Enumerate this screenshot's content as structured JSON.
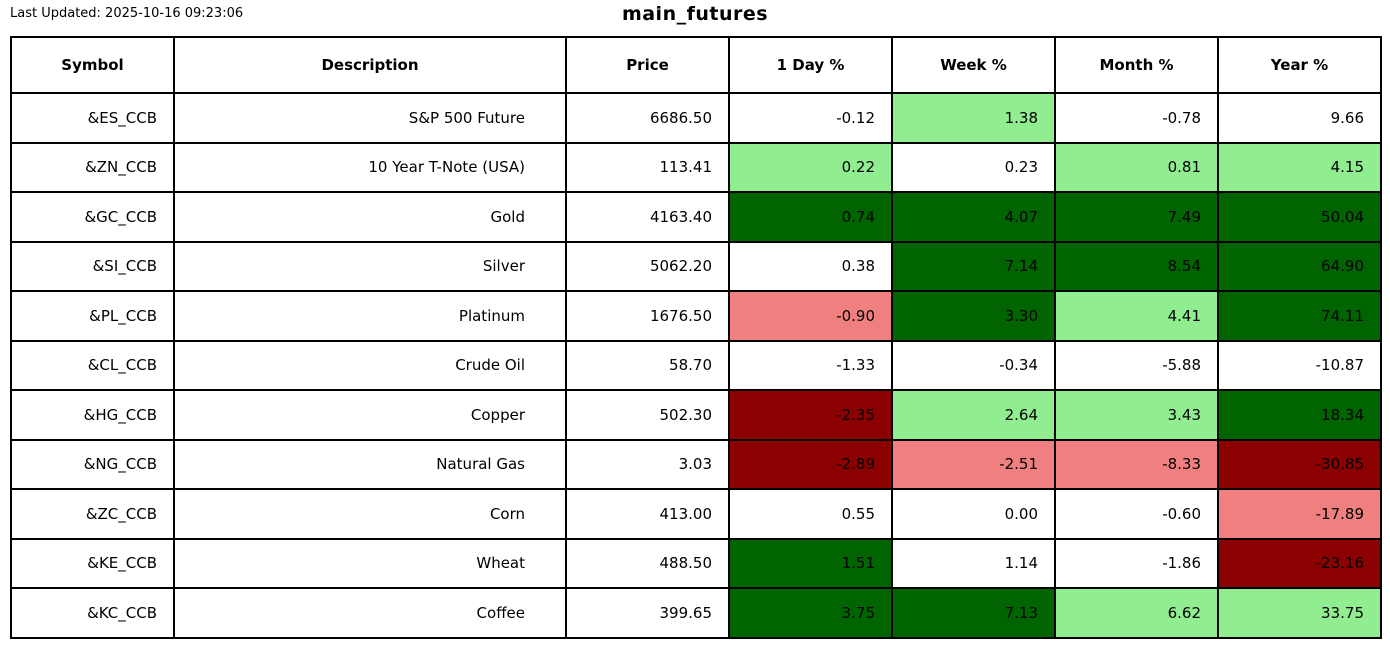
{
  "header": {
    "last_updated": "Last Updated: 2025-10-16 09:23:06",
    "title": "main_futures"
  },
  "colors": {
    "flat": "#ffffff",
    "up_light": "#90ee90",
    "up_dark": "#006400",
    "down_light": "#f08080",
    "down_dark": "#8b0000"
  },
  "chart_data": {
    "type": "table",
    "title": "main_futures",
    "columns": [
      {
        "key": "symbol",
        "label": "Symbol"
      },
      {
        "key": "description",
        "label": "Description"
      },
      {
        "key": "price",
        "label": "Price"
      },
      {
        "key": "day",
        "label": "1 Day %"
      },
      {
        "key": "week",
        "label": "Week %"
      },
      {
        "key": "month",
        "label": "Month %"
      },
      {
        "key": "year",
        "label": "Year %"
      }
    ],
    "rows": [
      {
        "symbol": "&ES_CCB",
        "description": "S&P 500 Future",
        "price": "6686.50",
        "day": {
          "value": "-0.12",
          "color": "flat"
        },
        "week": {
          "value": "1.38",
          "color": "up_light"
        },
        "month": {
          "value": "-0.78",
          "color": "flat"
        },
        "year": {
          "value": "9.66",
          "color": "flat"
        }
      },
      {
        "symbol": "&ZN_CCB",
        "description": "10 Year T-Note (USA)",
        "price": "113.41",
        "day": {
          "value": "0.22",
          "color": "up_light"
        },
        "week": {
          "value": "0.23",
          "color": "flat"
        },
        "month": {
          "value": "0.81",
          "color": "up_light"
        },
        "year": {
          "value": "4.15",
          "color": "up_light"
        }
      },
      {
        "symbol": "&GC_CCB",
        "description": "Gold",
        "price": "4163.40",
        "day": {
          "value": "0.74",
          "color": "up_dark"
        },
        "week": {
          "value": "4.07",
          "color": "up_dark"
        },
        "month": {
          "value": "7.49",
          "color": "up_dark"
        },
        "year": {
          "value": "50.04",
          "color": "up_dark"
        }
      },
      {
        "symbol": "&SI_CCB",
        "description": "Silver",
        "price": "5062.20",
        "day": {
          "value": "0.38",
          "color": "flat"
        },
        "week": {
          "value": "7.14",
          "color": "up_dark"
        },
        "month": {
          "value": "8.54",
          "color": "up_dark"
        },
        "year": {
          "value": "64.90",
          "color": "up_dark"
        }
      },
      {
        "symbol": "&PL_CCB",
        "description": "Platinum",
        "price": "1676.50",
        "day": {
          "value": "-0.90",
          "color": "down_light"
        },
        "week": {
          "value": "3.30",
          "color": "up_dark"
        },
        "month": {
          "value": "4.41",
          "color": "up_light"
        },
        "year": {
          "value": "74.11",
          "color": "up_dark"
        }
      },
      {
        "symbol": "&CL_CCB",
        "description": "Crude Oil",
        "price": "58.70",
        "day": {
          "value": "-1.33",
          "color": "flat"
        },
        "week": {
          "value": "-0.34",
          "color": "flat"
        },
        "month": {
          "value": "-5.88",
          "color": "flat"
        },
        "year": {
          "value": "-10.87",
          "color": "flat"
        }
      },
      {
        "symbol": "&HG_CCB",
        "description": "Copper",
        "price": "502.30",
        "day": {
          "value": "-2.35",
          "color": "down_dark"
        },
        "week": {
          "value": "2.64",
          "color": "up_light"
        },
        "month": {
          "value": "3.43",
          "color": "up_light"
        },
        "year": {
          "value": "18.34",
          "color": "up_dark"
        }
      },
      {
        "symbol": "&NG_CCB",
        "description": "Natural Gas",
        "price": "3.03",
        "day": {
          "value": "-2.89",
          "color": "down_dark"
        },
        "week": {
          "value": "-2.51",
          "color": "down_light"
        },
        "month": {
          "value": "-8.33",
          "color": "down_light"
        },
        "year": {
          "value": "-30.85",
          "color": "down_dark"
        }
      },
      {
        "symbol": "&ZC_CCB",
        "description": "Corn",
        "price": "413.00",
        "day": {
          "value": "0.55",
          "color": "flat"
        },
        "week": {
          "value": "0.00",
          "color": "flat"
        },
        "month": {
          "value": "-0.60",
          "color": "flat"
        },
        "year": {
          "value": "-17.89",
          "color": "down_light"
        }
      },
      {
        "symbol": "&KE_CCB",
        "description": "Wheat",
        "price": "488.50",
        "day": {
          "value": "1.51",
          "color": "up_dark"
        },
        "week": {
          "value": "1.14",
          "color": "flat"
        },
        "month": {
          "value": "-1.86",
          "color": "flat"
        },
        "year": {
          "value": "-23.16",
          "color": "down_dark"
        }
      },
      {
        "symbol": "&KC_CCB",
        "description": "Coffee",
        "price": "399.65",
        "day": {
          "value": "3.75",
          "color": "up_dark"
        },
        "week": {
          "value": "7.13",
          "color": "up_dark"
        },
        "month": {
          "value": "6.62",
          "color": "up_light"
        },
        "year": {
          "value": "33.75",
          "color": "up_light"
        }
      }
    ]
  }
}
